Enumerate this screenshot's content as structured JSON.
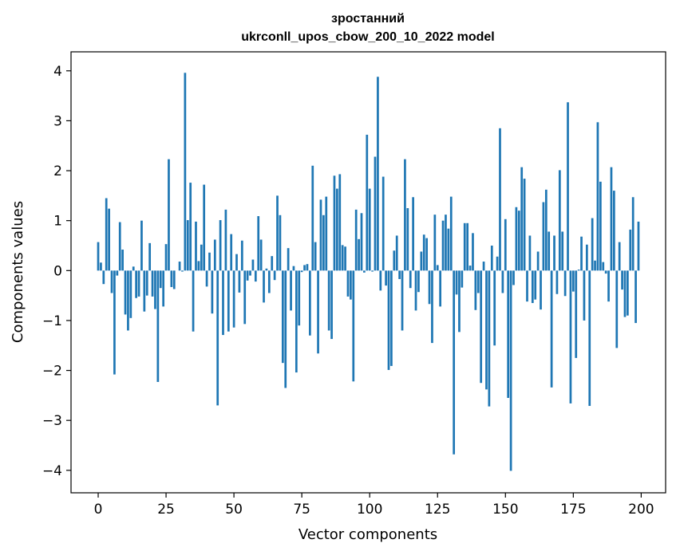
{
  "chart_data": {
    "type": "bar",
    "title": "зростанний",
    "subtitle": "ukrconll_upos_cbow_200_10_2022 model",
    "xlabel": "Vector components",
    "ylabel": "Components values",
    "xlim": [
      -10,
      209
    ],
    "ylim": [
      -4.45,
      4.38
    ],
    "xticks": [
      0,
      25,
      50,
      75,
      100,
      125,
      150,
      175,
      200
    ],
    "yticks": [
      -4,
      -3,
      -2,
      -1,
      0,
      1,
      2,
      3,
      4
    ],
    "xtick_labels": [
      "0",
      "25",
      "50",
      "75",
      "100",
      "125",
      "150",
      "175",
      "200"
    ],
    "ytick_labels": [
      "−4",
      "−3",
      "−2",
      "−1",
      "0",
      "1",
      "2",
      "3",
      "4"
    ],
    "bar_color": "#1f77b4",
    "grid": false,
    "values": [
      0.57,
      0.16,
      -0.27,
      1.45,
      1.24,
      -0.45,
      -2.08,
      -0.1,
      0.97,
      0.42,
      -0.88,
      -1.2,
      -0.95,
      0.08,
      -0.55,
      -0.52,
      1.0,
      -0.82,
      -0.5,
      0.55,
      -0.52,
      -0.77,
      -2.23,
      -0.35,
      -0.72,
      0.53,
      2.23,
      -0.33,
      -0.37,
      0.0,
      0.18,
      -0.02,
      3.96,
      1.01,
      1.76,
      -1.22,
      0.98,
      0.19,
      0.52,
      1.72,
      -0.32,
      0.36,
      -0.86,
      0.62,
      -2.7,
      1.01,
      -1.29,
      1.22,
      -1.22,
      0.73,
      -1.14,
      0.33,
      -0.44,
      0.6,
      -1.07,
      -0.2,
      -0.1,
      0.22,
      -0.22,
      1.09,
      0.62,
      -0.64,
      0.04,
      -0.45,
      0.29,
      -0.19,
      1.5,
      1.11,
      -1.85,
      -2.35,
      0.45,
      -0.8,
      0.09,
      -2.04,
      -1.1,
      -0.03,
      0.11,
      0.13,
      -1.3,
      2.1,
      0.57,
      -1.66,
      1.42,
      1.11,
      1.48,
      -1.2,
      -1.37,
      1.9,
      1.64,
      1.93,
      0.51,
      0.48,
      -0.52,
      -0.58,
      -2.22,
      1.22,
      0.63,
      1.15,
      -0.04,
      2.72,
      1.64,
      -0.02,
      2.28,
      3.88,
      -0.4,
      1.88,
      -0.3,
      -1.99,
      -1.91,
      0.4,
      0.7,
      -0.17,
      -1.2,
      2.23,
      1.25,
      -0.35,
      1.47,
      -0.8,
      -0.43,
      0.38,
      0.72,
      0.65,
      -0.67,
      -1.45,
      1.12,
      0.11,
      -0.72,
      1.0,
      1.12,
      0.84,
      1.48,
      -3.68,
      -0.48,
      -1.23,
      -0.34,
      0.95,
      0.95,
      0.1,
      0.75,
      -0.79,
      -0.45,
      -2.25,
      0.18,
      -2.38,
      -2.72,
      0.5,
      -1.5,
      0.28,
      2.85,
      -0.45,
      1.03,
      -2.55,
      -4.01,
      -0.29,
      1.27,
      1.2,
      2.07,
      1.84,
      -0.62,
      0.7,
      -0.65,
      -0.58,
      0.38,
      -0.78,
      1.37,
      1.62,
      0.78,
      -2.34,
      0.7,
      -0.47,
      2.01,
      0.78,
      -0.51,
      3.37,
      -2.66,
      -0.42,
      -1.75,
      0.02,
      0.68,
      -1.0,
      0.52,
      -2.71,
      1.05,
      0.2,
      2.97,
      1.78,
      0.17,
      -0.06,
      -0.62,
      2.07,
      1.6,
      -1.55,
      0.57,
      -0.38,
      -0.93,
      -0.9,
      0.82,
      1.47,
      -1.05,
      0.98
    ]
  }
}
